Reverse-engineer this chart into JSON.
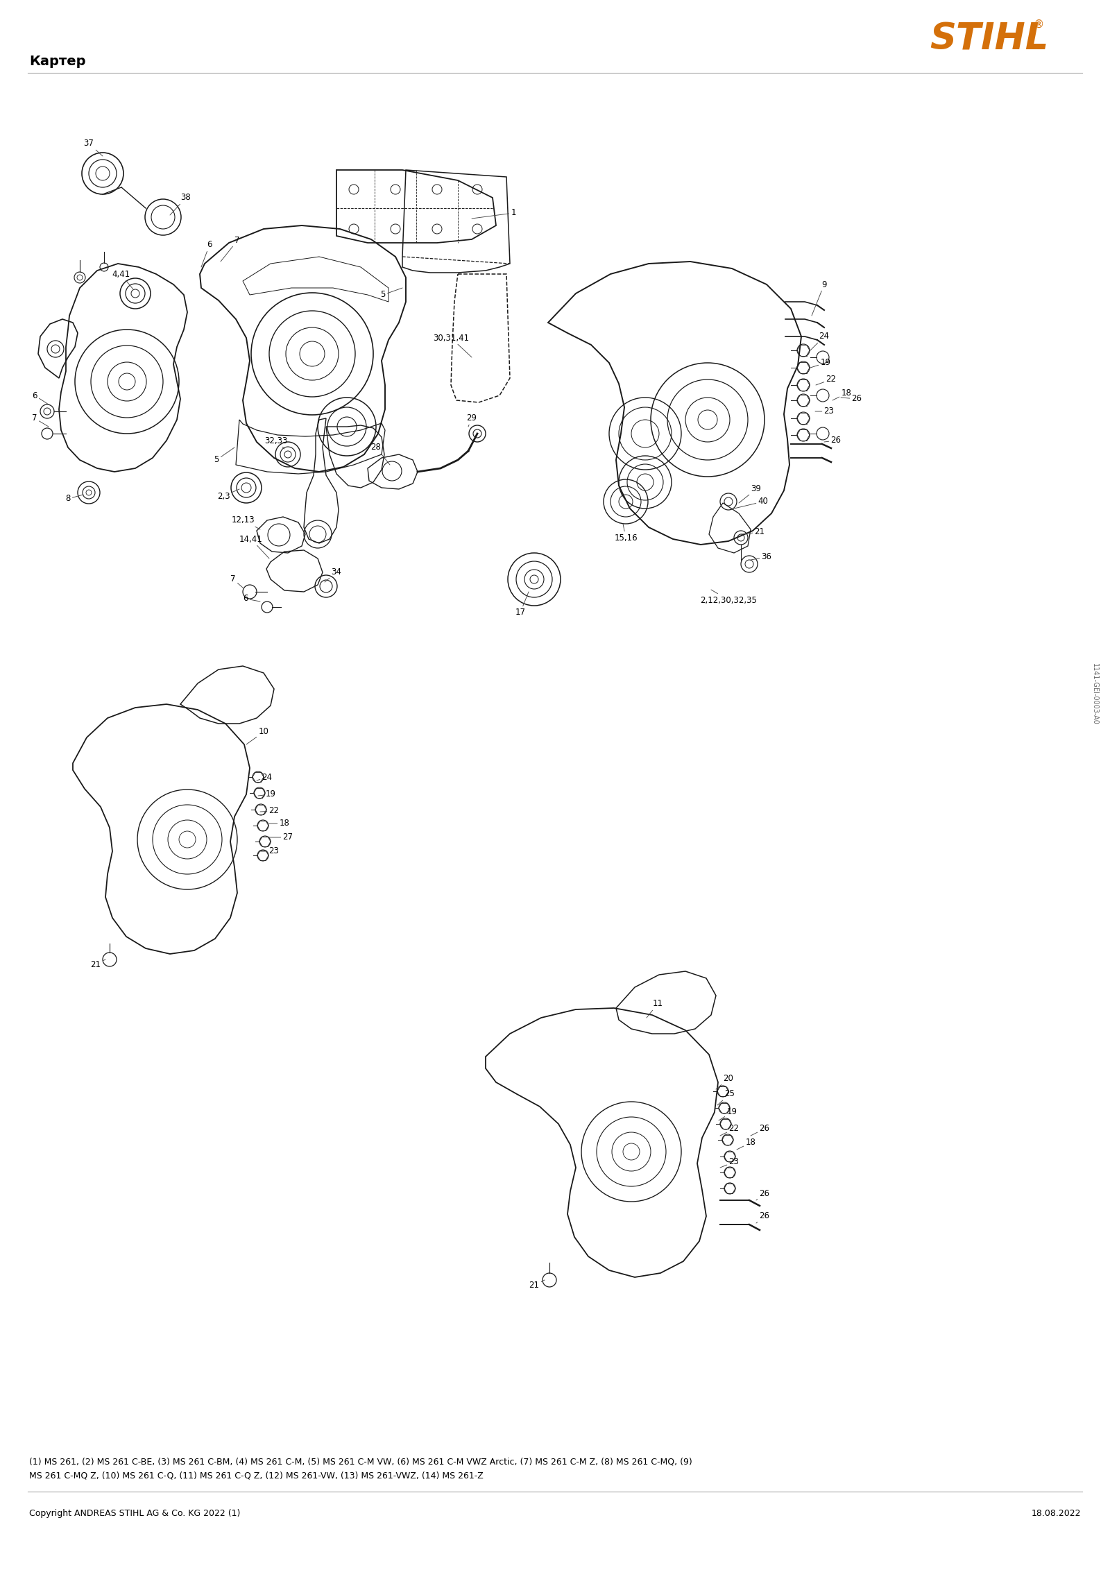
{
  "title": "Картер",
  "logo_text": "STIHL",
  "logo_color": "#D4700A",
  "background_color": "#ffffff",
  "fig_width": 16.0,
  "fig_height": 22.63,
  "dpi": 100,
  "copyright_text": "Copyright ANDREAS STIHL AG & Co. KG 2022 (1)",
  "date_text": "18.08.2022",
  "footnote_line1": "(1) MS 261, (2) MS 261 C-BE, (3) MS 261 C-BM, (4) MS 261 C-M, (5) MS 261 C-M VW, (6) MS 261 C-M VWZ Arctic, (7) MS 261 C-M Z, (8) MS 261 C-MQ, (9)",
  "footnote_line2": "MS 261 C-MQ Z, (10) MS 261 C-Q, (11) MS 261 C-Q Z, (12) MS 261-VW, (13) MS 261-VWZ, (14) MS 261-Z",
  "vertical_text": "1141-GEI-0003-A0"
}
